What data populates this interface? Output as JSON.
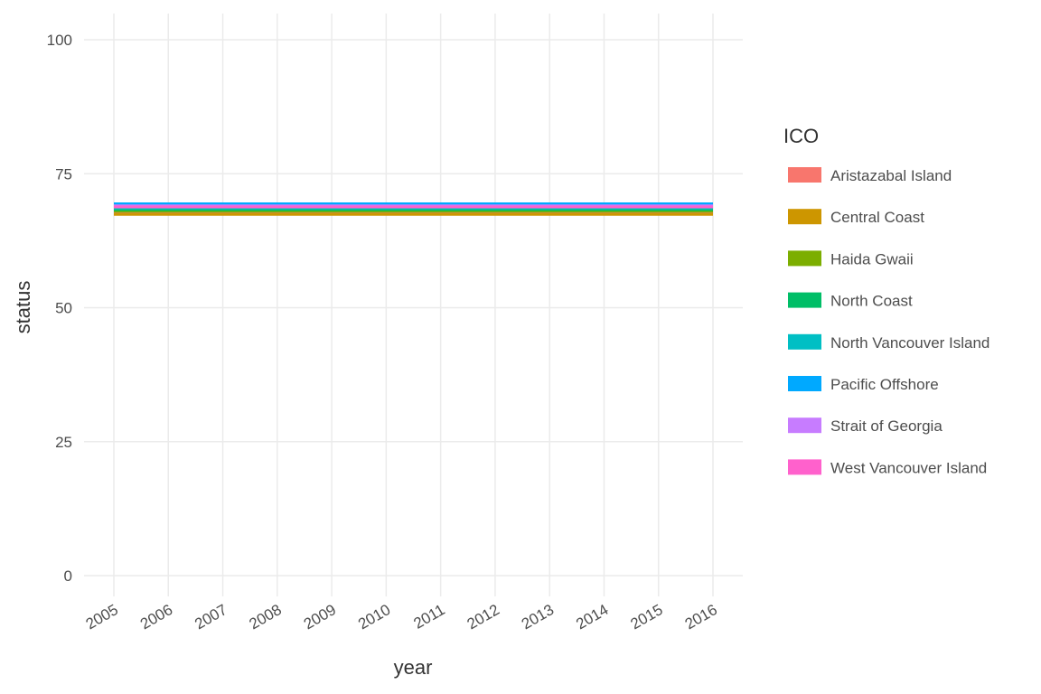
{
  "chart_data": {
    "type": "line",
    "xlabel": "year",
    "ylabel": "status",
    "x": [
      2005,
      2006,
      2007,
      2008,
      2009,
      2010,
      2011,
      2012,
      2013,
      2014,
      2015,
      2016
    ],
    "x_tick_labels": [
      "2005",
      "2006",
      "2007",
      "2008",
      "2009",
      "2010",
      "2011",
      "2012",
      "2013",
      "2014",
      "2015",
      "2016"
    ],
    "ylim": [
      0,
      100
    ],
    "y_ticks": [
      0,
      25,
      50,
      75,
      100
    ],
    "y_tick_labels": [
      "0",
      "25",
      "50",
      "75",
      "100"
    ],
    "grid": true,
    "legend": {
      "title": "ICO",
      "placement": "right"
    },
    "series": [
      {
        "name": "Aristazabal Island",
        "color": "#F8766D",
        "values": [
          67.6,
          67.6,
          67.6,
          67.6,
          67.6,
          67.6,
          67.6,
          67.6,
          67.6,
          67.6,
          67.6,
          67.6
        ]
      },
      {
        "name": "Central Coast",
        "color": "#CD9600",
        "values": [
          67.4,
          67.4,
          67.4,
          67.4,
          67.4,
          67.4,
          67.4,
          67.4,
          67.4,
          67.4,
          67.4,
          67.4
        ]
      },
      {
        "name": "Haida Gwaii",
        "color": "#7CAE00",
        "values": [
          68.0,
          68.0,
          68.0,
          68.0,
          68.0,
          68.0,
          68.0,
          68.0,
          68.0,
          68.0,
          68.0,
          68.0
        ]
      },
      {
        "name": "North Coast",
        "color": "#00BE67",
        "values": [
          68.3,
          68.3,
          68.3,
          68.3,
          68.3,
          68.3,
          68.3,
          68.3,
          68.3,
          68.3,
          68.3,
          68.3
        ]
      },
      {
        "name": "North Vancouver Island",
        "color": "#00BFC4",
        "values": [
          68.6,
          68.6,
          68.6,
          68.6,
          68.6,
          68.6,
          68.6,
          68.6,
          68.6,
          68.6,
          68.6,
          68.6
        ]
      },
      {
        "name": "Pacific Offshore",
        "color": "#00A9FF",
        "values": [
          69.4,
          69.4,
          69.4,
          69.4,
          69.4,
          69.4,
          69.4,
          69.4,
          69.4,
          69.4,
          69.4,
          69.4
        ]
      },
      {
        "name": "Strait of Georgia",
        "color": "#C77CFF",
        "values": [
          69.0,
          69.0,
          69.0,
          69.0,
          69.0,
          69.0,
          69.0,
          69.0,
          69.0,
          69.0,
          69.0,
          69.0
        ]
      },
      {
        "name": "West Vancouver Island",
        "color": "#FF61CC",
        "values": [
          68.8,
          68.8,
          68.8,
          68.8,
          68.8,
          68.8,
          68.8,
          68.8,
          68.8,
          68.8,
          68.8,
          68.8
        ]
      }
    ]
  }
}
